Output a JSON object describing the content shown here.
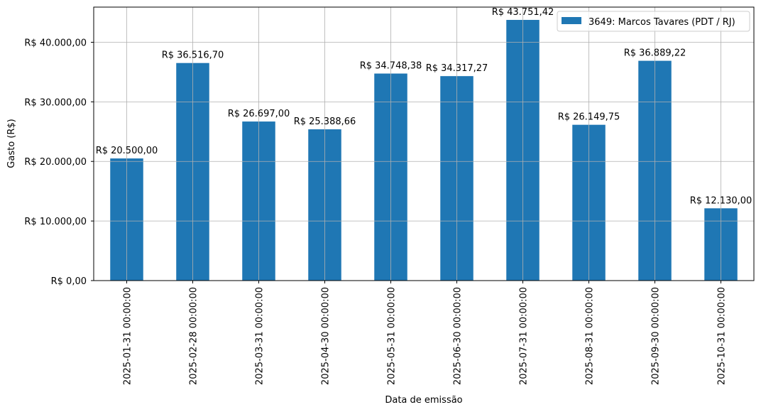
{
  "chart_data": {
    "type": "bar",
    "x_label": "Data de emissão",
    "y_label": "Gasto (R$)",
    "categories": [
      "2025-01-31 00:00:00",
      "2025-02-28 00:00:00",
      "2025-03-31 00:00:00",
      "2025-04-30 00:00:00",
      "2025-05-31 00:00:00",
      "2025-06-30 00:00:00",
      "2025-07-31 00:00:00",
      "2025-08-31 00:00:00",
      "2025-09-30 00:00:00",
      "2025-10-31 00:00:00"
    ],
    "series": [
      {
        "name": "3649: Marcos Tavares (PDT / RJ)",
        "color": "#1f77b4",
        "values": [
          20500.0,
          36516.7,
          26697.0,
          25388.66,
          34748.38,
          34317.27,
          43751.42,
          26149.75,
          36889.22,
          12130.0
        ],
        "value_labels": [
          "R$ 20.500,00",
          "R$ 36.516,70",
          "R$ 26.697,00",
          "R$ 25.388,66",
          "R$ 34.748,38",
          "R$ 34.317,27",
          "R$ 43.751,42",
          "R$ 26.149,75",
          "R$ 36.889,22",
          "R$ 12.130,00"
        ]
      }
    ],
    "ylim": [
      0,
      45900
    ],
    "yticks": [
      {
        "value": 0,
        "label": "R$ 0,00"
      },
      {
        "value": 10000,
        "label": "R$ 10.000,00"
      },
      {
        "value": 20000,
        "label": "R$ 20.000,00"
      },
      {
        "value": 30000,
        "label": "R$ 30.000,00"
      },
      {
        "value": 40000,
        "label": "R$ 40.000,00"
      }
    ],
    "grid": true,
    "legend": "upper right"
  }
}
